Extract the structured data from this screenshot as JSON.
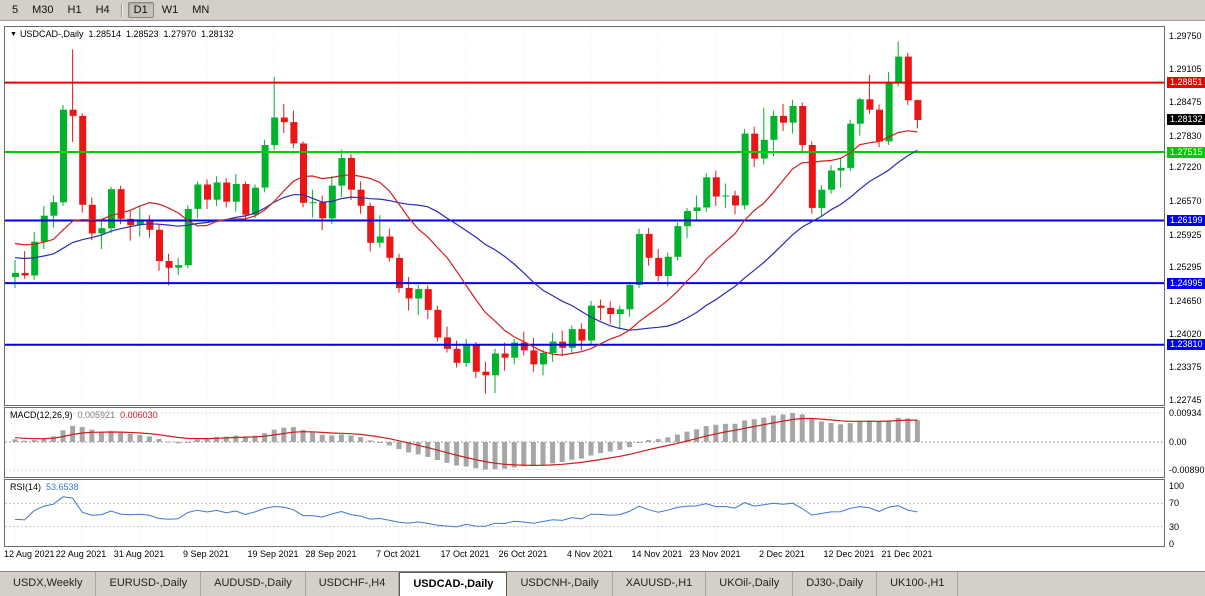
{
  "toolbar": {
    "timeframes": [
      "5",
      "M30",
      "H1",
      "H4",
      "D1",
      "W1",
      "MN"
    ],
    "active_timeframe": "D1"
  },
  "chart": {
    "collapse_arrow": "▼",
    "title": "USDCAD-,Daily",
    "ohlc": {
      "open": "1.28514",
      "high": "1.28523",
      "low": "1.27970",
      "close": "1.28132"
    },
    "hlines": [
      {
        "price": 1.28851,
        "color": "#ee0000",
        "badge": "1.28851"
      },
      {
        "price": 1.27515,
        "color": "#00cc00",
        "badge": "1.27515"
      },
      {
        "price": 1.26199,
        "color": "#0000ee",
        "badge": "1.26199"
      },
      {
        "price": 1.24995,
        "color": "#0000ee",
        "badge": "1.24995"
      },
      {
        "price": 1.2381,
        "color": "#0000ee",
        "badge": "1.23810"
      }
    ],
    "current_price_badge": {
      "price": 1.28132,
      "text": "1.28132",
      "color": "#000000"
    }
  },
  "macd_panel": {
    "label": "MACD(12,26,9)",
    "value_main": "0.005921",
    "value_signal": "0.006030",
    "axis_labels": [
      {
        "text": "0.00934",
        "value": 0.00934
      },
      {
        "text": "0.00",
        "value": 0
      },
      {
        "text": "-0.00890",
        "value": -0.0089
      }
    ]
  },
  "rsi_panel": {
    "label": "RSI(14)",
    "value": "53.6538",
    "axis_labels": [
      {
        "text": "100",
        "value": 100
      },
      {
        "text": "70",
        "value": 70
      },
      {
        "text": "30",
        "value": 30
      },
      {
        "text": "0",
        "value": 0
      }
    ]
  },
  "tabs": [
    {
      "label": "USDX,Weekly",
      "active": false
    },
    {
      "label": "EURUSD-,Daily",
      "active": false
    },
    {
      "label": "AUDUSD-,Daily",
      "active": false
    },
    {
      "label": "USDCHF-,H4",
      "active": false
    },
    {
      "label": "USDCAD-,Daily",
      "active": true
    },
    {
      "label": "USDCNH-,Daily",
      "active": false
    },
    {
      "label": "XAUUSD-,H1",
      "active": false
    },
    {
      "label": "UKOil-,Daily",
      "active": false
    },
    {
      "label": "DJ30-,Daily",
      "active": false
    },
    {
      "label": "UK100-,H1",
      "active": false
    }
  ],
  "chart_data": {
    "type": "candlestick",
    "symbol": "USDCAD-",
    "timeframe": "Daily",
    "y_axis_ticks": [
      "1.29750",
      "1.29105",
      "1.28475",
      "1.27830",
      "1.27220",
      "1.26570",
      "1.25925",
      "1.25295",
      "1.24650",
      "1.24020",
      "1.23375",
      "1.22745"
    ],
    "x_axis_ticks": [
      {
        "label": "12 Aug 2021",
        "index": 0
      },
      {
        "label": "22 Aug 2021",
        "index": 7
      },
      {
        "label": "31 Aug 2021",
        "index": 13
      },
      {
        "label": "9 Sep 2021",
        "index": 20
      },
      {
        "label": "19 Sep 2021",
        "index": 27
      },
      {
        "label": "28 Sep 2021",
        "index": 33
      },
      {
        "label": "7 Oct 2021",
        "index": 40
      },
      {
        "label": "17 Oct 2021",
        "index": 47
      },
      {
        "label": "26 Oct 2021",
        "index": 53
      },
      {
        "label": "4 Nov 2021",
        "index": 60
      },
      {
        "label": "14 Nov 2021",
        "index": 67
      },
      {
        "label": "23 Nov 2021",
        "index": 73
      },
      {
        "label": "2 Dec 2021",
        "index": 80
      },
      {
        "label": "12 Dec 2021",
        "index": 87
      },
      {
        "label": "21 Dec 2021",
        "index": 93
      }
    ],
    "dates": [
      "12 Aug 2021",
      "13 Aug 2021",
      "16 Aug 2021",
      "17 Aug 2021",
      "18 Aug 2021",
      "19 Aug 2021",
      "20 Aug 2021",
      "23 Aug 2021",
      "24 Aug 2021",
      "25 Aug 2021",
      "26 Aug 2021",
      "27 Aug 2021",
      "30 Aug 2021",
      "31 Aug 2021",
      "1 Sep 2021",
      "2 Sep 2021",
      "3 Sep 2021",
      "6 Sep 2021",
      "7 Sep 2021",
      "8 Sep 2021",
      "9 Sep 2021",
      "10 Sep 2021",
      "13 Sep 2021",
      "14 Sep 2021",
      "15 Sep 2021",
      "16 Sep 2021",
      "17 Sep 2021",
      "20 Sep 2021",
      "21 Sep 2021",
      "22 Sep 2021",
      "23 Sep 2021",
      "24 Sep 2021",
      "27 Sep 2021",
      "28 Sep 2021",
      "29 Sep 2021",
      "30 Sep 2021",
      "1 Oct 2021",
      "4 Oct 2021",
      "5 Oct 2021",
      "6 Oct 2021",
      "7 Oct 2021",
      "8 Oct 2021",
      "11 Oct 2021",
      "12 Oct 2021",
      "13 Oct 2021",
      "14 Oct 2021",
      "15 Oct 2021",
      "18 Oct 2021",
      "19 Oct 2021",
      "20 Oct 2021",
      "21 Oct 2021",
      "22 Oct 2021",
      "25 Oct 2021",
      "26 Oct 2021",
      "27 Oct 2021",
      "28 Oct 2021",
      "29 Oct 2021",
      "1 Nov 2021",
      "2 Nov 2021",
      "3 Nov 2021",
      "4 Nov 2021",
      "5 Nov 2021",
      "8 Nov 2021",
      "9 Nov 2021",
      "10 Nov 2021",
      "11 Nov 2021",
      "12 Nov 2021",
      "15 Nov 2021",
      "16 Nov 2021",
      "17 Nov 2021",
      "18 Nov 2021",
      "19 Nov 2021",
      "22 Nov 2021",
      "23 Nov 2021",
      "24 Nov 2021",
      "25 Nov 2021",
      "26 Nov 2021",
      "29 Nov 2021",
      "30 Nov 2021",
      "1 Dec 2021",
      "2 Dec 2021",
      "3 Dec 2021",
      "6 Dec 2021",
      "7 Dec 2021",
      "8 Dec 2021",
      "9 Dec 2021",
      "10 Dec 2021",
      "13 Dec 2021",
      "14 Dec 2021",
      "15 Dec 2021",
      "16 Dec 2021",
      "17 Dec 2021",
      "20 Dec 2021",
      "21 Dec 2021",
      "22 Dec 2021"
    ],
    "candles": [
      [
        1.2511,
        1.2544,
        1.249,
        1.2519
      ],
      [
        1.2519,
        1.2561,
        1.2508,
        1.2514
      ],
      [
        1.2514,
        1.2598,
        1.2506,
        1.2579
      ],
      [
        1.2579,
        1.2648,
        1.2565,
        1.2629
      ],
      [
        1.2629,
        1.2668,
        1.2606,
        1.2655
      ],
      [
        1.2655,
        1.2842,
        1.2648,
        1.2833
      ],
      [
        1.2833,
        1.2949,
        1.2771,
        1.2821
      ],
      [
        1.2821,
        1.2826,
        1.2635,
        1.265
      ],
      [
        1.265,
        1.2664,
        1.2582,
        1.2595
      ],
      [
        1.2595,
        1.2619,
        1.2565,
        1.2605
      ],
      [
        1.2605,
        1.2685,
        1.2595,
        1.268
      ],
      [
        1.268,
        1.2687,
        1.2613,
        1.2623
      ],
      [
        1.2623,
        1.2639,
        1.2581,
        1.2611
      ],
      [
        1.2611,
        1.2647,
        1.2589,
        1.2622
      ],
      [
        1.2622,
        1.263,
        1.2587,
        1.2602
      ],
      [
        1.2602,
        1.2613,
        1.2523,
        1.2542
      ],
      [
        1.2542,
        1.2556,
        1.2495,
        1.2529
      ],
      [
        1.2529,
        1.2548,
        1.2515,
        1.2534
      ],
      [
        1.2534,
        1.2649,
        1.2528,
        1.2642
      ],
      [
        1.2642,
        1.2695,
        1.2625,
        1.2689
      ],
      [
        1.2689,
        1.2699,
        1.2642,
        1.266
      ],
      [
        1.266,
        1.2705,
        1.2648,
        1.2693
      ],
      [
        1.2693,
        1.2701,
        1.2645,
        1.2656
      ],
      [
        1.2656,
        1.2709,
        1.2637,
        1.269
      ],
      [
        1.269,
        1.2695,
        1.262,
        1.2631
      ],
      [
        1.2631,
        1.2689,
        1.2624,
        1.2683
      ],
      [
        1.2683,
        1.2775,
        1.2674,
        1.2765
      ],
      [
        1.2765,
        1.2896,
        1.2756,
        1.2818
      ],
      [
        1.2818,
        1.2844,
        1.2788,
        1.2809
      ],
      [
        1.2809,
        1.2831,
        1.2759,
        1.2768
      ],
      [
        1.2768,
        1.2772,
        1.2645,
        1.2654
      ],
      [
        1.2654,
        1.2679,
        1.2626,
        1.2655
      ],
      [
        1.2655,
        1.2668,
        1.2601,
        1.2624
      ],
      [
        1.2624,
        1.2705,
        1.2613,
        1.2687
      ],
      [
        1.2687,
        1.2756,
        1.2665,
        1.274
      ],
      [
        1.274,
        1.2747,
        1.2659,
        1.2679
      ],
      [
        1.2679,
        1.2695,
        1.2633,
        1.2648
      ],
      [
        1.2648,
        1.2654,
        1.256,
        1.2577
      ],
      [
        1.2577,
        1.263,
        1.2568,
        1.2589
      ],
      [
        1.2589,
        1.2604,
        1.2541,
        1.2548
      ],
      [
        1.2548,
        1.2556,
        1.2481,
        1.249
      ],
      [
        1.249,
        1.2511,
        1.2447,
        1.247
      ],
      [
        1.247,
        1.2496,
        1.2438,
        1.2488
      ],
      [
        1.2488,
        1.2495,
        1.243,
        1.2448
      ],
      [
        1.2448,
        1.2456,
        1.2387,
        1.2395
      ],
      [
        1.2395,
        1.2416,
        1.2366,
        1.2373
      ],
      [
        1.2373,
        1.2389,
        1.2337,
        1.2346
      ],
      [
        1.2346,
        1.2392,
        1.2338,
        1.2381
      ],
      [
        1.2381,
        1.2386,
        1.2317,
        1.2329
      ],
      [
        1.2329,
        1.2348,
        1.2287,
        1.2322
      ],
      [
        1.2322,
        1.2373,
        1.2288,
        1.2364
      ],
      [
        1.2364,
        1.2385,
        1.2331,
        1.2356
      ],
      [
        1.2356,
        1.2392,
        1.2343,
        1.2385
      ],
      [
        1.2385,
        1.2406,
        1.236,
        1.237
      ],
      [
        1.237,
        1.2394,
        1.2329,
        1.2343
      ],
      [
        1.2343,
        1.2371,
        1.2322,
        1.2365
      ],
      [
        1.2365,
        1.2404,
        1.2348,
        1.2387
      ],
      [
        1.2387,
        1.2408,
        1.2359,
        1.2375
      ],
      [
        1.2375,
        1.2418,
        1.2366,
        1.2411
      ],
      [
        1.2411,
        1.2422,
        1.237,
        1.2389
      ],
      [
        1.2389,
        1.2465,
        1.2381,
        1.2456
      ],
      [
        1.2456,
        1.2468,
        1.2428,
        1.2452
      ],
      [
        1.2452,
        1.2464,
        1.2421,
        1.244
      ],
      [
        1.244,
        1.2456,
        1.2413,
        1.2449
      ],
      [
        1.2449,
        1.2501,
        1.2435,
        1.2496
      ],
      [
        1.2496,
        1.2604,
        1.249,
        1.2594
      ],
      [
        1.2594,
        1.2605,
        1.2533,
        1.2548
      ],
      [
        1.2548,
        1.2565,
        1.2503,
        1.2513
      ],
      [
        1.2513,
        1.2558,
        1.2493,
        1.255
      ],
      [
        1.255,
        1.2616,
        1.2543,
        1.2609
      ],
      [
        1.2609,
        1.2644,
        1.2586,
        1.2638
      ],
      [
        1.2638,
        1.2668,
        1.2618,
        1.2645
      ],
      [
        1.2645,
        1.2711,
        1.2636,
        1.2703
      ],
      [
        1.2703,
        1.2716,
        1.2648,
        1.2666
      ],
      [
        1.2666,
        1.2691,
        1.2644,
        1.2668
      ],
      [
        1.2668,
        1.2677,
        1.2632,
        1.2649
      ],
      [
        1.2649,
        1.2796,
        1.2641,
        1.2787
      ],
      [
        1.2787,
        1.28,
        1.2723,
        1.2739
      ],
      [
        1.2739,
        1.2837,
        1.2728,
        1.2775
      ],
      [
        1.2775,
        1.2831,
        1.2743,
        1.2821
      ],
      [
        1.2821,
        1.2844,
        1.2792,
        1.2808
      ],
      [
        1.2808,
        1.2852,
        1.2787,
        1.284
      ],
      [
        1.284,
        1.2847,
        1.2751,
        1.2765
      ],
      [
        1.2765,
        1.2772,
        1.2633,
        1.2644
      ],
      [
        1.2644,
        1.2688,
        1.2629,
        1.2679
      ],
      [
        1.2679,
        1.2726,
        1.2671,
        1.2716
      ],
      [
        1.2716,
        1.2739,
        1.2683,
        1.2721
      ],
      [
        1.2721,
        1.2814,
        1.2715,
        1.2806
      ],
      [
        1.2806,
        1.2856,
        1.2783,
        1.2853
      ],
      [
        1.2853,
        1.29,
        1.2825,
        1.2833
      ],
      [
        1.2833,
        1.2843,
        1.2761,
        1.2772
      ],
      [
        1.2772,
        1.2905,
        1.2765,
        1.2885
      ],
      [
        1.2885,
        1.2964,
        1.2878,
        1.2935
      ],
      [
        1.2935,
        1.2942,
        1.2842,
        1.2851
      ],
      [
        1.28514,
        1.28523,
        1.2797,
        1.28132
      ]
    ],
    "ma_seed": [
      1.253,
      1.251,
      1.249,
      1.248,
      1.2485,
      1.2495,
      1.251,
      1.253,
      1.255,
      1.2565,
      1.2575,
      1.2585,
      1.2595,
      1.2605,
      1.261,
      1.2605,
      1.2595,
      1.258,
      1.256,
      1.254
    ],
    "up_color": "#00b22c",
    "down_color": "#ea1616",
    "ma_fast_color": "#d11f1f",
    "ma_slow_color": "#2b2bb4",
    "macd_hist_color": "#a6a6a6",
    "macd_signal_color": "#cf1d1d",
    "rsi_color": "#3c78d2"
  }
}
